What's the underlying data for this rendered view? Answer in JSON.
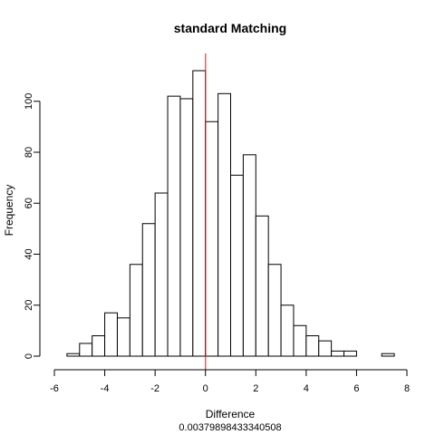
{
  "chart_data": {
    "type": "bar",
    "title": "standard Matching",
    "xlabel": "Difference",
    "ylabel": "Frequency",
    "subtitle": "0.00379898433340508",
    "bin_edges": [
      -5.5,
      -5,
      -4.5,
      -4,
      -3.5,
      -3,
      -2.5,
      -2,
      -1.5,
      -1,
      -0.5,
      0,
      0.5,
      1,
      1.5,
      2,
      2.5,
      3,
      3.5,
      4,
      4.5,
      5,
      5.5,
      6,
      6.5,
      7,
      7.5
    ],
    "values": [
      1,
      5,
      8,
      17,
      15,
      36,
      52,
      64,
      102,
      101,
      112,
      92,
      103,
      71,
      79,
      55,
      36,
      20,
      12,
      8,
      6,
      2,
      2,
      0,
      0,
      1
    ],
    "xlim": [
      -6,
      8
    ],
    "ylim": [
      0,
      112
    ],
    "x_ticks": [
      -6,
      -4,
      -2,
      0,
      2,
      4,
      6,
      8
    ],
    "x_tick_labels": [
      "-6",
      "-4",
      "-2",
      "0",
      "2",
      "4",
      "6",
      "8"
    ],
    "y_ticks": [
      0,
      20,
      40,
      60,
      80,
      100
    ],
    "y_tick_labels": [
      "0",
      "20",
      "40",
      "60",
      "80",
      "100"
    ],
    "vline": 0.00379898433340508,
    "colors": {
      "bar_fill": "#ffffff",
      "bar_stroke": "#000000",
      "vline": "#ff0000",
      "axis": "#000000"
    },
    "grid": false
  }
}
